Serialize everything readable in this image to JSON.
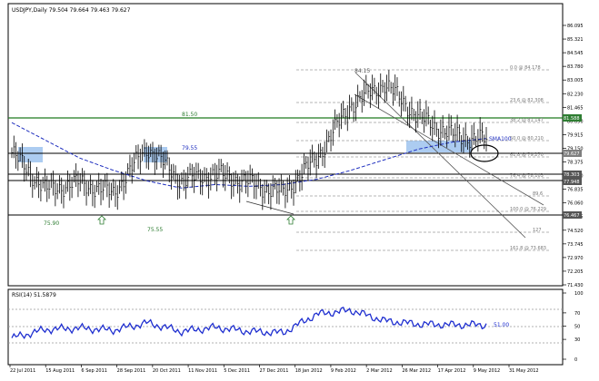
{
  "colors": {
    "price_line": "#000000",
    "sma": "#1f2fbf",
    "rsi": "#1f2fd0",
    "horiz_green": "#1f7a1f",
    "label_green": "#2e7d32",
    "sma_label": "#1f2fbf",
    "highlight_blue": "#9dc3ee",
    "fib_grey": "#9e9e9e",
    "price_box_green": "#2e7d32",
    "price_box_grey": "#7f7f7f"
  },
  "main": {
    "title": "USDJPY,Daily  79.504 79.664 79.463 79.627",
    "y_ticks": [
      "86.095",
      "85.321",
      "84.545",
      "83.780",
      "83.005",
      "82.230",
      "81.465",
      "80.690",
      "79.915",
      "79.150",
      "78.375",
      "77.600",
      "76.835",
      "76.060",
      "75.285",
      "74.520",
      "73.745",
      "72.970",
      "72.205",
      "71.430"
    ],
    "annotations": {
      "high": "84.15",
      "level_8150": "81.50",
      "level_7955": "79.55",
      "level_7590": "75.90",
      "level_7555": "75.55",
      "sma": "SMA100"
    },
    "price_boxes": {
      "green": "81.588",
      "grey_top": "79.627",
      "dark1": "78.303",
      "dark2": "77.948",
      "dark3": "76.467"
    },
    "fib_labels": [
      "0.0 @ 84.178",
      "23.6 @ 82.308",
      "38.2 @ 81.147",
      "50.0 @ 80.210",
      "61.8 @ 79.270",
      "76.4 @ 78.103",
      "89.6",
      "100.0 @ 76.229",
      "127",
      "161.8 @ 73.683"
    ],
    "fib_small_labels": [
      "89.6",
      "127",
      "138"
    ]
  },
  "rsi": {
    "title": "RSI(14) 51.5879",
    "y_ticks": [
      "100",
      "70",
      "50",
      "30",
      "0"
    ],
    "label": "51.00"
  },
  "x_ticks": [
    "22 Jul 2011",
    "15 Aug 2011",
    "6 Sep 2011",
    "28 Sep 2011",
    "20 Oct 2011",
    "11 Nov 2011",
    "5 Dec 2011",
    "27 Dec 2011",
    "18 Jan 2012",
    "9 Feb 2012",
    "2 Mar 2012",
    "26 Mar 2012",
    "17 Apr 2012",
    "9 May 2012",
    "31 May 2012"
  ],
  "chart_data": {
    "type": "line",
    "title": "USDJPY,Daily  79.504 79.664 79.463 79.627",
    "xlabel": "",
    "ylabel": "",
    "ylim": [
      71.43,
      86.095
    ],
    "x": [
      "22 Jul 2011",
      "15 Aug 2011",
      "6 Sep 2011",
      "28 Sep 2011",
      "20 Oct 2011",
      "11 Nov 2011",
      "5 Dec 2011",
      "27 Dec 2011",
      "18 Jan 2012",
      "9 Feb 2012",
      "2 Mar 2012",
      "26 Mar 2012",
      "17 Apr 2012",
      "9 May 2012",
      "31 May 2012"
    ],
    "series": [
      {
        "name": "USDJPY",
        "values": [
          78.9,
          76.8,
          77.2,
          76.6,
          79.2,
          77.3,
          77.7,
          77.2,
          76.6,
          78.6,
          81.6,
          82.8,
          80.9,
          79.9,
          79.6
        ]
      },
      {
        "name": "SMA100",
        "values": [
          80.6,
          79.6,
          78.6,
          77.9,
          77.3,
          76.9,
          77.1,
          77.0,
          77.1,
          77.4,
          77.9,
          78.5,
          79.1,
          79.5,
          79.7
        ]
      }
    ],
    "rsi": {
      "title": "RSI(14) 51.5879",
      "ylim": [
        0,
        100
      ],
      "values": [
        32,
        45,
        47,
        44,
        55,
        42,
        48,
        42,
        40,
        68,
        74,
        58,
        53,
        52,
        52
      ]
    }
  }
}
